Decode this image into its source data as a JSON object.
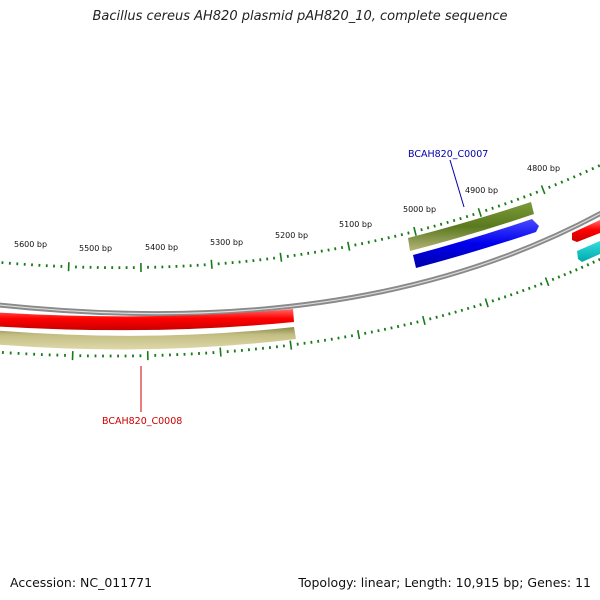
{
  "title": "Bacillus cereus AH820 plasmid pAH820_10, complete sequence",
  "footer": {
    "accession": "Accession: NC_011771",
    "summary": "Topology: linear; Length: 10,915 bp; Genes: 11"
  },
  "scale_labels": [
    "5600 bp",
    "5500 bp",
    "5400 bp",
    "5300 bp",
    "5200 bp",
    "5100 bp",
    "5000 bp",
    "4900 bp",
    "4800 bp"
  ],
  "gene_labels": {
    "c0007": "BCAH820_C0007",
    "c0008": "BCAH820_C0008"
  },
  "colors": {
    "gene_red": "#ff0000",
    "gene_blue": "#0000ee",
    "gene_green": "#5f7f1f",
    "gene_khaki": "#c2bc80",
    "gene_cyan": "#00cccc",
    "backbone": "#808080",
    "ticks": "#1a7a1a",
    "label_blue": "#0000aa",
    "label_red": "#cc0000"
  }
}
